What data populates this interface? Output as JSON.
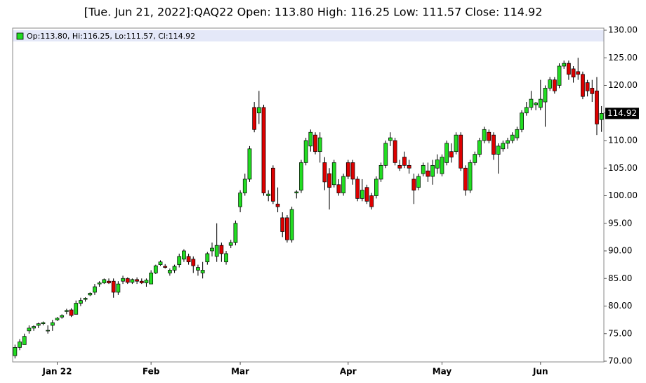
{
  "chart_data": {
    "type": "candlestick",
    "title": "[Tue. Jun 21, 2022]:QAQ22 Open: 113.80 High: 116.25 Low: 111.57 Close: 114.92",
    "series_name": "Op:113.80, Hi:116.25, Lo:111.57, Cl:114.92",
    "last_price_label": "114.92",
    "up_color": "#22dd22",
    "down_color": "#dd0000",
    "grid": false,
    "categories": [
      null,
      null,
      null,
      null,
      null,
      null,
      null,
      null,
      null,
      "Jan 22",
      null,
      null,
      null,
      null,
      null,
      null,
      null,
      null,
      null,
      null,
      null,
      null,
      null,
      null,
      null,
      null,
      null,
      null,
      null,
      "Feb",
      null,
      null,
      null,
      null,
      null,
      null,
      null,
      null,
      null,
      null,
      null,
      null,
      null,
      null,
      null,
      null,
      null,
      null,
      "Mar",
      null,
      null,
      null,
      null,
      null,
      null,
      null,
      null,
      null,
      null,
      null,
      null,
      null,
      null,
      null,
      null,
      null,
      null,
      null,
      null,
      null,
      null,
      "Apr",
      null,
      null,
      null,
      null,
      null,
      null,
      null,
      null,
      null,
      null,
      null,
      null,
      null,
      null,
      null,
      null,
      null,
      null,
      null,
      "May",
      null,
      null,
      null,
      null,
      null,
      null,
      null,
      null,
      null,
      null,
      null,
      null,
      null,
      null,
      null,
      null,
      null,
      null,
      null,
      null,
      "Jun",
      null,
      null,
      null,
      null,
      null,
      null,
      null,
      null,
      null,
      null,
      null,
      null,
      null
    ],
    "open": [
      71,
      72.5,
      73,
      75.5,
      76,
      76.5,
      76.8,
      75.5,
      76.5,
      77.5,
      78,
      79,
      79.3,
      78.5,
      80.5,
      81.2,
      82,
      82.5,
      84,
      84.2,
      84.5,
      84.5,
      82.5,
      84.5,
      85,
      84.3,
      84.8,
      84.5,
      84.2,
      84,
      86,
      87.5,
      87.2,
      86,
      86.5,
      87.5,
      88.5,
      89,
      88.5,
      86.5,
      86,
      88,
      90,
      89,
      91,
      88,
      91,
      91.5,
      98,
      100.5,
      103,
      116,
      115,
      116,
      100,
      105,
      98.5,
      96,
      96,
      92,
      100.5,
      101,
      106,
      109,
      111,
      108,
      106,
      104,
      102,
      102,
      100.5,
      106,
      106,
      103,
      99.5,
      101.5,
      100,
      100,
      103,
      105.5,
      110,
      110,
      105.5,
      107,
      105.5,
      103,
      101.5,
      104,
      104.5,
      103.5,
      105,
      104,
      106,
      108,
      108,
      111,
      105,
      101,
      106,
      107.5,
      110,
      111.5,
      111,
      107.5,
      108.5,
      109.5,
      110,
      110.5,
      112,
      115,
      116,
      116.5,
      116,
      117,
      119.5,
      121,
      120,
      123.5,
      124,
      123,
      122.5,
      122,
      120.5,
      119.5,
      119,
      113.8
    ],
    "high": [
      73,
      74,
      75,
      76.5,
      76.5,
      77,
      77.2,
      76.5,
      77.5,
      78,
      78.5,
      79.5,
      79.6,
      81,
      81.5,
      81.6,
      82.5,
      84,
      84.5,
      85,
      85,
      85,
      84.5,
      85.5,
      85.2,
      85,
      85.2,
      85,
      85,
      86.5,
      87.5,
      88.3,
      87.6,
      86.8,
      87.5,
      89.5,
      90.3,
      89.5,
      89,
      87.5,
      88,
      89.8,
      91.5,
      95,
      91.5,
      90,
      92,
      95.5,
      101,
      104,
      109,
      117,
      119,
      116.5,
      101,
      105.5,
      101.5,
      97,
      96.5,
      98,
      101,
      106.5,
      110.5,
      112,
      111.5,
      111.5,
      107,
      105,
      106.5,
      103,
      104,
      106.5,
      106.5,
      103.5,
      103,
      102,
      100.5,
      103.5,
      106,
      110,
      111.5,
      110.5,
      106.5,
      108,
      106.5,
      104,
      104,
      106,
      106,
      106.5,
      107.5,
      107.5,
      110,
      109.5,
      111.5,
      111.5,
      105.5,
      106.5,
      108,
      110.5,
      112.5,
      112,
      111.5,
      109.5,
      110,
      110.5,
      111.5,
      112.5,
      115.5,
      117,
      119,
      117,
      121,
      120,
      121.5,
      121.5,
      124,
      124.5,
      124.5,
      123.5,
      125,
      122.5,
      121,
      121,
      121.5,
      116.25
    ],
    "low": [
      70.5,
      72,
      73,
      75,
      75.5,
      76,
      76.5,
      75,
      75.5,
      77.3,
      77.7,
      78.5,
      78,
      78.5,
      80,
      80.8,
      81.8,
      82,
      83.5,
      84,
      84,
      81.5,
      82,
      84,
      84,
      84,
      84,
      84,
      83.5,
      84,
      85.8,
      87.3,
      86.8,
      85.5,
      86,
      87,
      88,
      87.5,
      86,
      85.5,
      85,
      87.5,
      89,
      88,
      88,
      87.5,
      90.5,
      91,
      97,
      100,
      102.5,
      111.5,
      113,
      100,
      99,
      98.5,
      97,
      92.5,
      91.5,
      91.5,
      99.5,
      100.5,
      105.5,
      108,
      107.5,
      106,
      101,
      97.5,
      101.5,
      100,
      100,
      103,
      102,
      99,
      99,
      98.5,
      97.5,
      99.5,
      102.5,
      105,
      109,
      105.5,
      104.5,
      105,
      104,
      98.5,
      101,
      103.5,
      102.5,
      102,
      104,
      103.5,
      105.5,
      106,
      107.5,
      104.5,
      100,
      100.5,
      105.5,
      107,
      109.5,
      109.5,
      106.5,
      104,
      108,
      108.5,
      109.5,
      110,
      111.5,
      114.5,
      115.5,
      115.5,
      115.5,
      112.5,
      119,
      118.5,
      119.5,
      123,
      121,
      120.5,
      121,
      117.5,
      118,
      117,
      111,
      111.57
    ],
    "close": [
      72.5,
      73.5,
      74.5,
      76,
      76.3,
      76.8,
      77,
      75.6,
      77,
      77.8,
      78.3,
      79.2,
      78.3,
      80.5,
      81,
      81.4,
      82.3,
      83.5,
      84.2,
      84.8,
      84.2,
      82.5,
      84,
      85,
      84.3,
      84.8,
      84.5,
      84.2,
      84.7,
      86,
      87.3,
      88,
      87,
      86.5,
      87.2,
      89,
      90,
      88,
      87.3,
      87,
      86.5,
      89.5,
      90.5,
      91,
      89.5,
      89.5,
      91.5,
      95,
      100.5,
      103,
      108.5,
      112,
      116,
      100.5,
      100.3,
      99,
      98,
      93.5,
      92,
      97.5,
      100.7,
      106,
      110,
      111.5,
      108,
      110.5,
      102.5,
      101.5,
      106,
      100.5,
      103.5,
      103.5,
      103,
      99.5,
      101,
      99,
      98,
      103,
      105.5,
      109.5,
      110.5,
      106,
      105,
      105.5,
      105,
      101,
      103.5,
      105.5,
      103.5,
      105.5,
      106.5,
      107,
      109.5,
      107,
      111,
      105,
      101,
      106,
      107.5,
      110,
      112,
      110,
      107.5,
      109,
      109.5,
      110,
      111,
      112,
      115,
      116,
      117.5,
      116.8,
      117.5,
      119.5,
      121,
      119,
      123.5,
      124,
      122,
      121.5,
      122,
      118,
      119,
      118.5,
      113,
      114.92
    ],
    "ylim": [
      70,
      130
    ],
    "yticks": [
      {
        "value": 70,
        "label": "70.00"
      },
      {
        "value": 75,
        "label": "75.00"
      },
      {
        "value": 80,
        "label": "80.00"
      },
      {
        "value": 85,
        "label": "85.00"
      },
      {
        "value": 90,
        "label": "90.00"
      },
      {
        "value": 95,
        "label": "95.00"
      },
      {
        "value": 100,
        "label": "100.00"
      },
      {
        "value": 105,
        "label": "105.00"
      },
      {
        "value": 110,
        "label": "110.00"
      },
      {
        "value": 115,
        "label": "115.00"
      },
      {
        "value": 120,
        "label": "120.00"
      },
      {
        "value": 125,
        "label": "125.00"
      },
      {
        "value": 130,
        "label": "130.00"
      }
    ]
  }
}
